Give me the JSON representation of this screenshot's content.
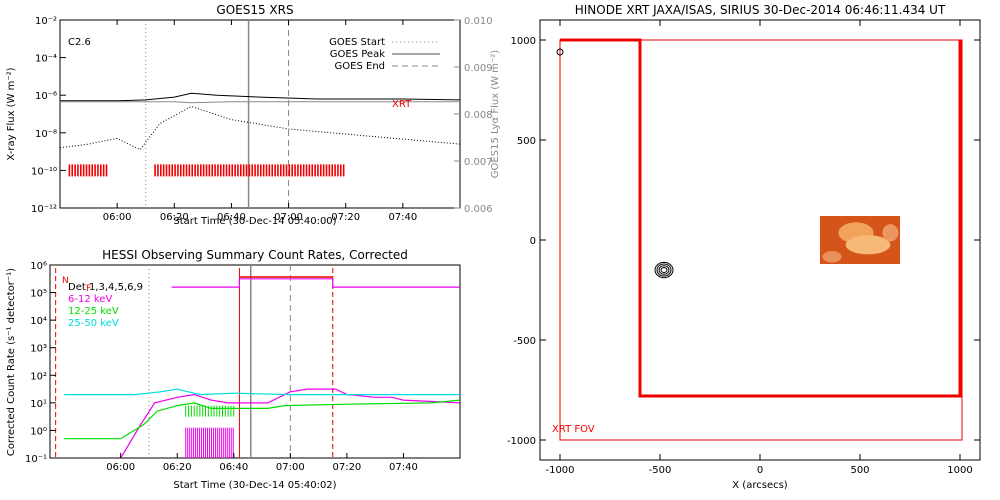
{
  "chart_data": [
    {
      "type": "line",
      "title": "GOES15 XRS",
      "flare_class": "C2.6",
      "xlabel": "Start Time (30-Dec-14 05:40:00)",
      "ylabel": "X-ray Flux (W m⁻²)",
      "ylabel_right": "GOES15 Lyα Flux (W m⁻²)",
      "x_ticks": [
        "06:00",
        "06:20",
        "06:40",
        "07:00",
        "07:20",
        "07:40"
      ],
      "y_ticks": [
        "10⁻²",
        "10⁻⁴",
        "10⁻⁶",
        "10⁻⁸",
        "10⁻¹⁰",
        "10⁻¹²"
      ],
      "y_ticks_right": [
        "0.010",
        "0.009",
        "0.008",
        "0.007",
        "0.006"
      ],
      "legend": [
        {
          "label": "GOES Start",
          "style": "dotted"
        },
        {
          "label": "GOES Peak",
          "style": "solid"
        },
        {
          "label": "GOES End",
          "style": "dashed"
        }
      ],
      "xrt_label": "XRT",
      "xlim": [
        "05:40",
        "08:00"
      ],
      "ylim": [
        -12,
        -2
      ],
      "event_times": {
        "start": "06:10",
        "peak": "06:46",
        "end": "07:00"
      },
      "series": [
        {
          "values_log10": [
            [
              0,
              -6.3
            ],
            [
              20,
              -6.3
            ],
            [
              30,
              -6.25
            ],
            [
              40,
              -6.1
            ],
            [
              46,
              -5.9
            ],
            [
              55,
              -6.0
            ],
            [
              70,
              -6.1
            ],
            [
              90,
              -6.2
            ],
            [
              120,
              -6.2
            ],
            [
              140,
              -6.25
            ]
          ],
          "color": "#000000"
        },
        {
          "values_log10": [
            [
              0,
              -8.8
            ],
            [
              10,
              -8.6
            ],
            [
              20,
              -8.3
            ],
            [
              28,
              -8.9
            ],
            [
              35,
              -7.5
            ],
            [
              46,
              -6.6
            ],
            [
              60,
              -7.3
            ],
            [
              80,
              -7.8
            ],
            [
              110,
              -8.2
            ],
            [
              140,
              -8.6
            ]
          ],
          "color": "#000000"
        },
        {
          "values_log10": [
            [
              0,
              -6.35
            ],
            [
              40,
              -6.35
            ],
            [
              46,
              -6.4
            ],
            [
              60,
              -6.35
            ],
            [
              140,
              -6.35
            ]
          ],
          "color": "#888888"
        }
      ],
      "xrt_obs_segments": [
        [
          3,
          16
        ],
        [
          33,
          99
        ]
      ],
      "xrt_color": "#ee0000"
    },
    {
      "type": "line",
      "title": "HESSI Observing Summary Count Rates, Corrected",
      "xlabel": "Start Time (30-Dec-14 05:40:02)",
      "ylabel": "Corrected Count Rate (s⁻¹ detector⁻¹)",
      "x_ticks": [
        "06:00",
        "06:20",
        "06:40",
        "07:00",
        "07:20",
        "07:40"
      ],
      "y_ticks": [
        "10⁶",
        "10⁵",
        "10⁴",
        "10³",
        "10²",
        "10¹",
        "10⁰",
        "10⁻¹"
      ],
      "legend": [
        {
          "label": "Det 1,3,4,5,6,9",
          "color": "#000000"
        },
        {
          "label": "6-12 keV",
          "color": "#ee00ee"
        },
        {
          "label": "12-25 keV",
          "color": "#00dd00"
        },
        {
          "label": "25-50 keV",
          "color": "#00dddd"
        }
      ],
      "flag_labels": [
        "N",
        "F"
      ],
      "ylim": [
        -1,
        6
      ],
      "series": [
        {
          "name": "6-12 keV",
          "values_log10": [
            [
              20,
              -1
            ],
            [
              27,
              0.2
            ],
            [
              32,
              1.0
            ],
            [
              40,
              1.2
            ],
            [
              46,
              1.3
            ],
            [
              52,
              1.1
            ],
            [
              58,
              1.0
            ],
            [
              72,
              1.0
            ],
            [
              80,
              1.4
            ],
            [
              86,
              1.5
            ],
            [
              96,
              1.5
            ],
            [
              100,
              1.3
            ],
            [
              110,
              1.2
            ],
            [
              116,
              1.2
            ],
            [
              120,
              1.1
            ],
            [
              140,
              1.0
            ]
          ],
          "color": "#ee00ee"
        },
        {
          "name": "12-25 keV",
          "values_log10": [
            [
              0,
              -0.3
            ],
            [
              20,
              -0.3
            ],
            [
              28,
              0.2
            ],
            [
              33,
              0.7
            ],
            [
              40,
              0.9
            ],
            [
              46,
              1.0
            ],
            [
              52,
              0.8
            ],
            [
              72,
              0.8
            ],
            [
              78,
              0.9
            ],
            [
              100,
              0.95
            ],
            [
              130,
              1.0
            ],
            [
              140,
              1.1
            ]
          ],
          "color": "#00dd00"
        },
        {
          "name": "25-50 keV",
          "values_log10": [
            [
              0,
              1.3
            ],
            [
              25,
              1.3
            ],
            [
              34,
              1.4
            ],
            [
              40,
              1.5
            ],
            [
              48,
              1.3
            ],
            [
              60,
              1.35
            ],
            [
              80,
              1.3
            ],
            [
              100,
              1.3
            ],
            [
              140,
              1.3
            ]
          ],
          "color": "#00dddd"
        },
        {
          "name": "attenuator",
          "values_log10": [
            [
              38,
              5.2
            ],
            [
              62,
              5.2
            ],
            [
              62,
              5.5
            ],
            [
              95,
              5.5
            ],
            [
              95,
              5.2
            ],
            [
              140,
              5.2
            ]
          ],
          "color": "#ee00ee"
        }
      ]
    },
    {
      "type": "scatter",
      "title": "HINODE XRT JAXA/ISAS, SIRIUS 30-Dec-2014 06:46:11.434 UT",
      "xlabel": "X (arcsecs)",
      "x_ticks": [
        "-1000",
        "-500",
        "0",
        "500",
        "1000"
      ],
      "y_ticks": [
        "1000",
        "500",
        "0",
        "-500",
        "-1000"
      ],
      "xlim": [
        -1100,
        1100
      ],
      "ylim": [
        -1100,
        1100
      ],
      "fov_label": "XRT FOV",
      "fov_color": "#ee0000",
      "fov_box": [
        [
          -1000,
          1000
        ],
        [
          -600,
          1000
        ],
        [
          -600,
          -780
        ],
        [
          1000,
          -780
        ],
        [
          1000,
          1000
        ]
      ],
      "xrt_image_extent": {
        "x": [
          300,
          700
        ],
        "y": [
          120,
          -120
        ]
      },
      "contours": [
        {
          "x": -480,
          "y": -150
        },
        {
          "x": -1000,
          "y": 940
        }
      ]
    }
  ]
}
